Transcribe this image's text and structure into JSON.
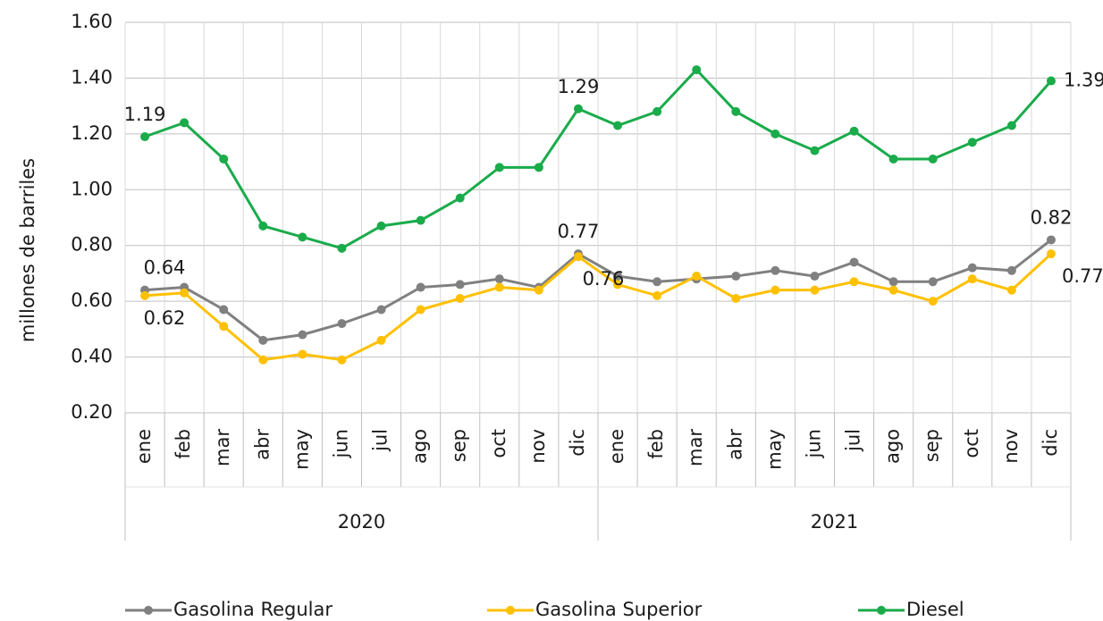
{
  "chart_data": {
    "type": "line",
    "y_label": "millones de barriles",
    "groups": [
      "2020",
      "2021"
    ],
    "categories": [
      "ene",
      "feb",
      "mar",
      "abr",
      "may",
      "jun",
      "jul",
      "ago",
      "sep",
      "oct",
      "nov",
      "dic",
      "ene",
      "feb",
      "mar",
      "abr",
      "may",
      "jun",
      "jul",
      "ago",
      "sep",
      "oct",
      "nov",
      "dic"
    ],
    "ylim": [
      0.2,
      1.6
    ],
    "yticks": [
      {
        "value": 0.2,
        "label": "0.20"
      },
      {
        "value": 0.4,
        "label": "0.40"
      },
      {
        "value": 0.6,
        "label": "0.60"
      },
      {
        "value": 0.8,
        "label": "0.80"
      },
      {
        "value": 1.0,
        "label": "1.00"
      },
      {
        "value": 1.2,
        "label": "1.20"
      },
      {
        "value": 1.4,
        "label": "1.40"
      },
      {
        "value": 1.6,
        "label": "1.60"
      }
    ],
    "grid": true,
    "legend": "bottom",
    "series": [
      {
        "name": "Gasolina Regular",
        "color": "#808080",
        "values": [
          0.64,
          0.65,
          0.57,
          0.46,
          0.48,
          0.52,
          0.57,
          0.65,
          0.66,
          0.68,
          0.65,
          0.77,
          0.69,
          0.67,
          0.68,
          0.69,
          0.71,
          0.69,
          0.74,
          0.67,
          0.67,
          0.72,
          0.71,
          0.82
        ],
        "value_labels": [
          "0.64",
          null,
          null,
          null,
          null,
          null,
          null,
          null,
          null,
          null,
          null,
          "0.77",
          null,
          null,
          null,
          null,
          null,
          null,
          null,
          null,
          null,
          null,
          null,
          "0.82"
        ]
      },
      {
        "name": "Gasolina Superior",
        "color": "#ffc000",
        "values": [
          0.62,
          0.63,
          0.51,
          0.39,
          0.41,
          0.39,
          0.46,
          0.57,
          0.61,
          0.65,
          0.64,
          0.76,
          0.66,
          0.62,
          0.69,
          0.61,
          0.64,
          0.64,
          0.67,
          0.64,
          0.6,
          0.68,
          0.64,
          0.77
        ],
        "value_labels": [
          "0.62",
          null,
          null,
          null,
          null,
          null,
          null,
          null,
          null,
          null,
          null,
          "0.76",
          null,
          null,
          null,
          null,
          null,
          null,
          null,
          null,
          null,
          null,
          null,
          "0.77"
        ]
      },
      {
        "name": "Diesel",
        "color": "#1aab4b",
        "values": [
          1.19,
          1.24,
          1.11,
          0.87,
          0.83,
          0.79,
          0.87,
          0.89,
          0.97,
          1.08,
          1.08,
          1.29,
          1.23,
          1.28,
          1.43,
          1.28,
          1.2,
          1.14,
          1.21,
          1.11,
          1.11,
          1.17,
          1.23,
          1.39
        ],
        "value_labels": [
          "1.19",
          null,
          null,
          null,
          null,
          null,
          null,
          null,
          null,
          null,
          null,
          "1.29",
          null,
          null,
          null,
          null,
          null,
          null,
          null,
          null,
          null,
          null,
          null,
          "1.39"
        ]
      }
    ]
  }
}
